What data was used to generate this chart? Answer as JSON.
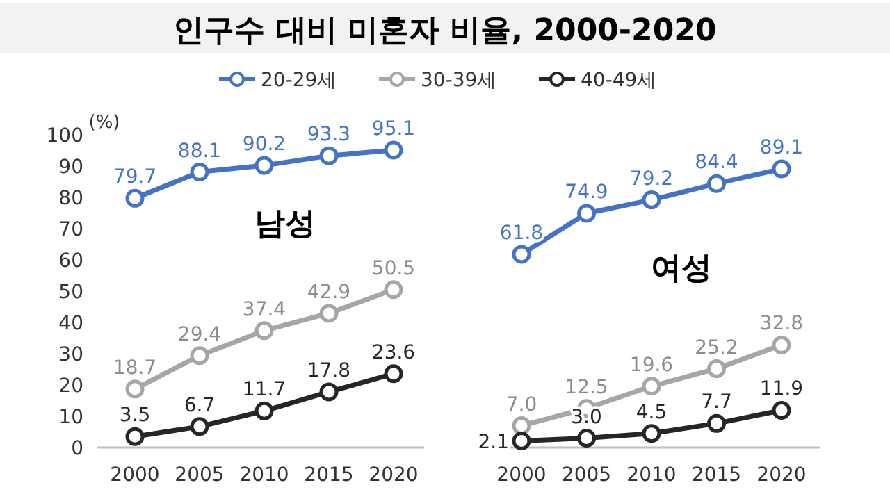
{
  "chart_data": [
    {
      "type": "line",
      "title": "인구수 대비 미혼자 비율, 2000-2020",
      "ylabel": "(%)",
      "annotations": [
        "남성"
      ],
      "categories": [
        "2000",
        "2005",
        "2010",
        "2015",
        "2020"
      ],
      "ylim": [
        0,
        100
      ],
      "yticks": [
        0,
        10,
        20,
        30,
        40,
        50,
        60,
        70,
        80,
        90,
        100
      ],
      "legend": "top",
      "marker": "circle",
      "series": [
        {
          "name": "20-29세",
          "color": "#4472c4",
          "values": [
            79.7,
            88.1,
            90.2,
            93.3,
            95.1
          ],
          "value_labels": [
            "79.7",
            "88.1",
            "90.2",
            "93.3",
            "95.1"
          ]
        },
        {
          "name": "30-39세",
          "color": "#a6a6a6",
          "values": [
            18.7,
            29.4,
            37.4,
            42.9,
            50.5
          ],
          "value_labels": [
            "18.7",
            "29.4",
            "37.4",
            "42.9",
            "50.5"
          ]
        },
        {
          "name": "40-49세",
          "color": "#262626",
          "values": [
            3.5,
            6.7,
            11.7,
            17.8,
            23.6
          ],
          "value_labels": [
            "3.5",
            "6.7",
            "11.7",
            "17.8",
            "23.6"
          ]
        }
      ]
    },
    {
      "type": "line",
      "annotations": [
        "여성"
      ],
      "categories": [
        "2000",
        "2005",
        "2010",
        "2015",
        "2020"
      ],
      "ylim": [
        0,
        100
      ],
      "tick_labels": "x",
      "marker": "circle",
      "series": [
        {
          "color": "#4472c4",
          "values": [
            61.8,
            74.9,
            79.2,
            84.4,
            89.1
          ],
          "value_labels": [
            "61.8",
            "74.9",
            "79.2",
            "84.4",
            "89.1"
          ]
        },
        {
          "color": "#a6a6a6",
          "values": [
            7.0,
            12.5,
            19.6,
            25.2,
            32.8
          ],
          "value_labels": [
            "7.0",
            "12.5",
            "19.6",
            "25.2",
            "32.8"
          ]
        },
        {
          "color": "#262626",
          "values": [
            2.1,
            3.0,
            4.5,
            7.7,
            11.9
          ],
          "value_labels": [
            "2.1",
            "3.0",
            "4.5",
            "7.7",
            "11.9"
          ]
        }
      ]
    }
  ]
}
